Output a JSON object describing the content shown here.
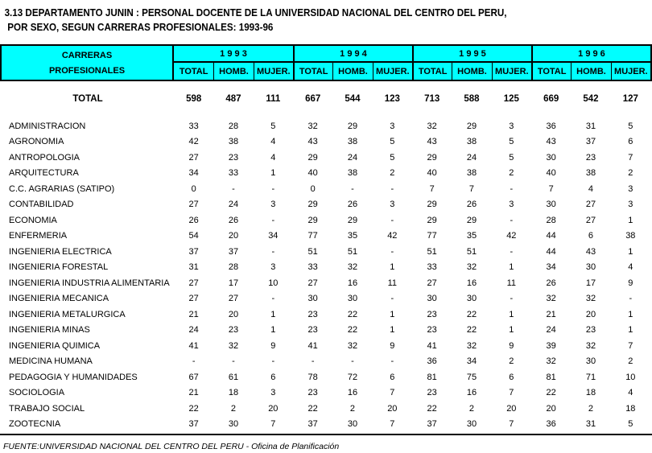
{
  "title": {
    "line1": "3.13 DEPARTAMENTO JUNIN : PERSONAL DOCENTE DE LA UNIVERSIDAD NACIONAL DEL CENTRO DEL PERU,",
    "line2": "POR SEXO, SEGUN CARRERAS PROFESIONALES: 1993-96"
  },
  "colors": {
    "header_bg": "#00FFFF",
    "border": "#000000"
  },
  "table": {
    "label_header": {
      "line1": "CARRERAS",
      "line2": "PROFESIONALES"
    },
    "year_groups": [
      {
        "year": "1 9 9 3",
        "cols": [
          "TOTAL",
          "HOMB.",
          "MUJER."
        ]
      },
      {
        "year": "1 9 9 4",
        "cols": [
          "TOTAL",
          "HOMB.",
          "MUJER."
        ]
      },
      {
        "year": "1 9 9 5",
        "cols": [
          "TOTAL",
          "HOMB.",
          "MUJER."
        ]
      },
      {
        "year": "1 9 9 6",
        "cols": [
          "TOTAL",
          "HOMB.",
          "MUJER."
        ]
      }
    ],
    "total_row": {
      "label": "TOTAL",
      "values": [
        "598",
        "487",
        "111",
        "667",
        "544",
        "123",
        "713",
        "588",
        "125",
        "669",
        "542",
        "127"
      ]
    },
    "rows": [
      {
        "label": "ADMINISTRACION",
        "values": [
          "33",
          "28",
          "5",
          "32",
          "29",
          "3",
          "32",
          "29",
          "3",
          "36",
          "31",
          "5"
        ]
      },
      {
        "label": "AGRONOMIA",
        "values": [
          "42",
          "38",
          "4",
          "43",
          "38",
          "5",
          "43",
          "38",
          "5",
          "43",
          "37",
          "6"
        ]
      },
      {
        "label": "ANTROPOLOGIA",
        "values": [
          "27",
          "23",
          "4",
          "29",
          "24",
          "5",
          "29",
          "24",
          "5",
          "30",
          "23",
          "7"
        ]
      },
      {
        "label": "ARQUITECTURA",
        "values": [
          "34",
          "33",
          "1",
          "40",
          "38",
          "2",
          "40",
          "38",
          "2",
          "40",
          "38",
          "2"
        ]
      },
      {
        "label": "C.C. AGRARIAS (SATIPO)",
        "values": [
          "0",
          "-",
          "-",
          "0",
          "-",
          "-",
          "7",
          "7",
          "-",
          "7",
          "4",
          "3"
        ]
      },
      {
        "label": "CONTABILIDAD",
        "values": [
          "27",
          "24",
          "3",
          "29",
          "26",
          "3",
          "29",
          "26",
          "3",
          "30",
          "27",
          "3"
        ]
      },
      {
        "label": "ECONOMIA",
        "values": [
          "26",
          "26",
          "-",
          "29",
          "29",
          "-",
          "29",
          "29",
          "-",
          "28",
          "27",
          "1"
        ]
      },
      {
        "label": "ENFERMERIA",
        "values": [
          "54",
          "20",
          "34",
          "77",
          "35",
          "42",
          "77",
          "35",
          "42",
          "44",
          "6",
          "38"
        ]
      },
      {
        "label": "INGENIERIA ELECTRICA",
        "values": [
          "37",
          "37",
          "-",
          "51",
          "51",
          "-",
          "51",
          "51",
          "-",
          "44",
          "43",
          "1"
        ]
      },
      {
        "label": "INGENIERIA FORESTAL",
        "values": [
          "31",
          "28",
          "3",
          "33",
          "32",
          "1",
          "33",
          "32",
          "1",
          "34",
          "30",
          "4"
        ]
      },
      {
        "label": "INGENIERIA INDUSTRIA ALIMENTARIA",
        "values": [
          "27",
          "17",
          "10",
          "27",
          "16",
          "11",
          "27",
          "16",
          "11",
          "26",
          "17",
          "9"
        ]
      },
      {
        "label": "INGENIERIA MECANICA",
        "values": [
          "27",
          "27",
          "-",
          "30",
          "30",
          "-",
          "30",
          "30",
          "-",
          "32",
          "32",
          "-"
        ]
      },
      {
        "label": "INGENIERIA METALURGICA",
        "values": [
          "21",
          "20",
          "1",
          "23",
          "22",
          "1",
          "23",
          "22",
          "1",
          "21",
          "20",
          "1"
        ]
      },
      {
        "label": "INGENIERIA MINAS",
        "values": [
          "24",
          "23",
          "1",
          "23",
          "22",
          "1",
          "23",
          "22",
          "1",
          "24",
          "23",
          "1"
        ]
      },
      {
        "label": "INGENIERIA QUIMICA",
        "values": [
          "41",
          "32",
          "9",
          "41",
          "32",
          "9",
          "41",
          "32",
          "9",
          "39",
          "32",
          "7"
        ]
      },
      {
        "label": "MEDICINA HUMANA",
        "values": [
          "-",
          "-",
          "-",
          "-",
          "-",
          "-",
          "36",
          "34",
          "2",
          "32",
          "30",
          "2"
        ]
      },
      {
        "label": "PEDAGOGIA Y HUMANIDADES",
        "values": [
          "67",
          "61",
          "6",
          "78",
          "72",
          "6",
          "81",
          "75",
          "6",
          "81",
          "71",
          "10"
        ]
      },
      {
        "label": "SOCIOLOGIA",
        "values": [
          "21",
          "18",
          "3",
          "23",
          "16",
          "7",
          "23",
          "16",
          "7",
          "22",
          "18",
          "4"
        ]
      },
      {
        "label": "TRABAJO SOCIAL",
        "values": [
          "22",
          "2",
          "20",
          "22",
          "2",
          "20",
          "22",
          "2",
          "20",
          "20",
          "2",
          "18"
        ]
      },
      {
        "label": "ZOOTECNIA",
        "values": [
          "37",
          "30",
          "7",
          "37",
          "30",
          "7",
          "37",
          "30",
          "7",
          "36",
          "31",
          "5"
        ]
      }
    ]
  },
  "footer": {
    "source": "FUENTE:UNIVERSIDAD NACIONAL DEL CENTRO DEL PERU - Oficina de Planificación"
  }
}
